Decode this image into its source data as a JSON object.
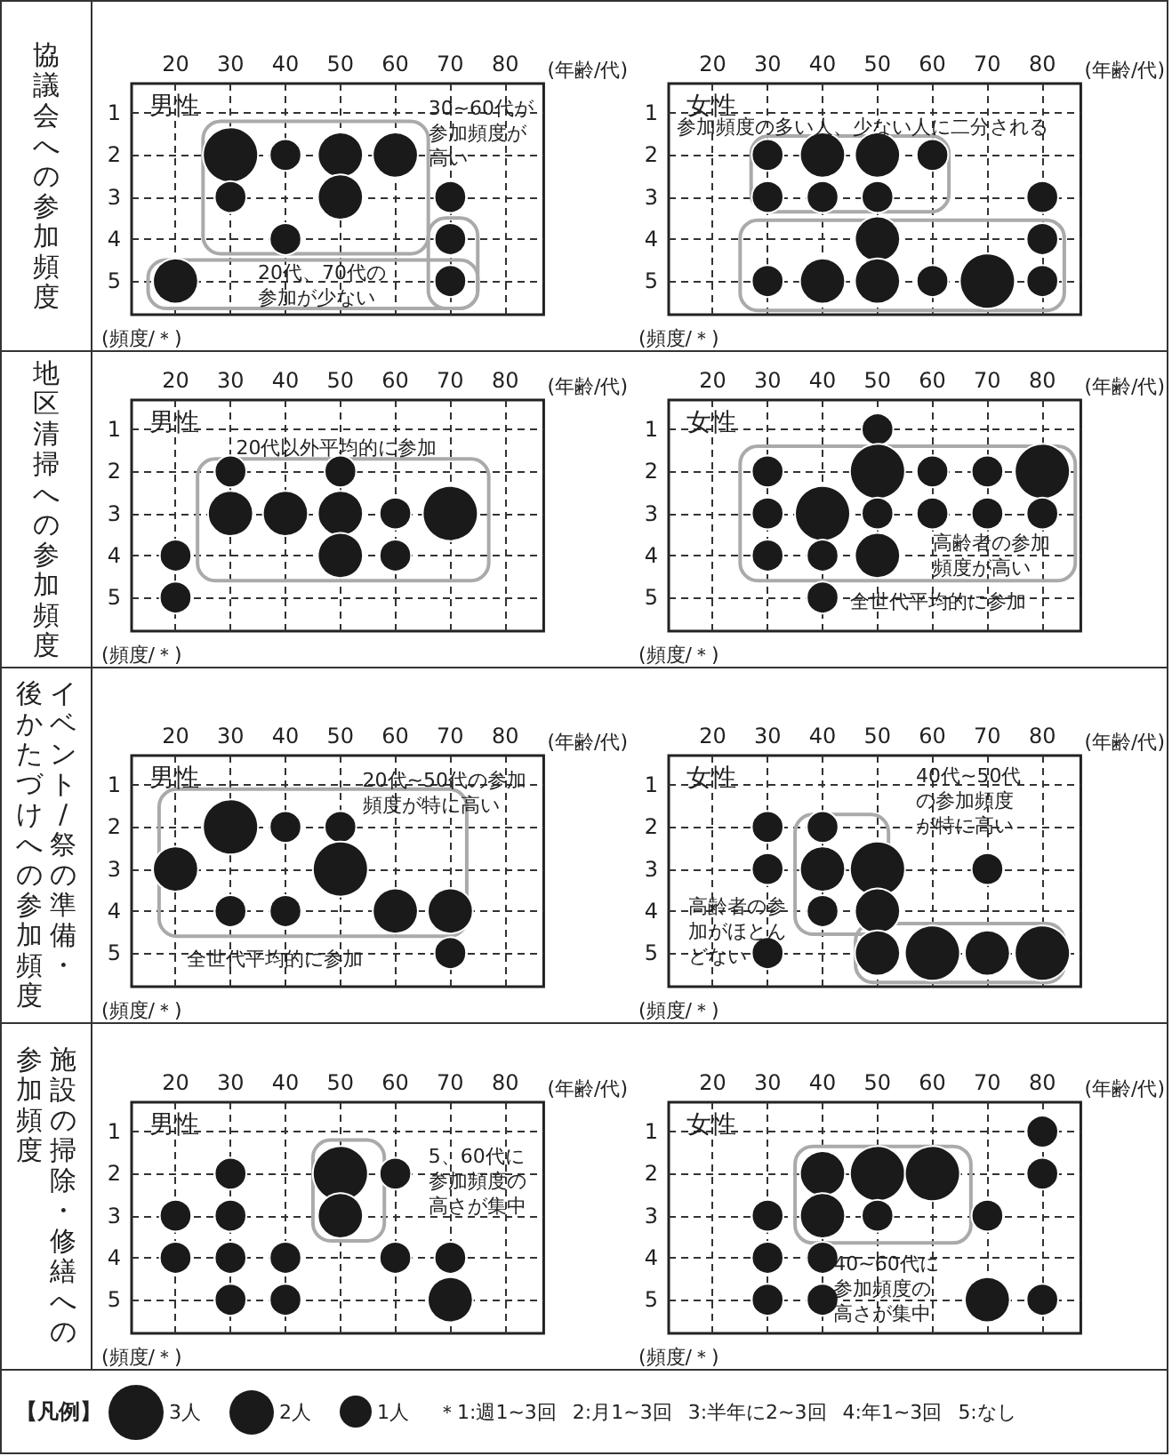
{
  "chart_data": [
    {
      "type": "bubble",
      "title": "男性",
      "xlabel": "(年齢/代)",
      "ylabel": "(頻度/＊)",
      "color": "#1a1a1a",
      "marker": "circle",
      "grid": true,
      "xlim": [
        12,
        87
      ],
      "xticks": [
        20,
        30,
        40,
        50,
        60,
        70,
        80
      ],
      "ylim": [
        5.8,
        0.3
      ],
      "yticks": [
        1,
        2,
        3,
        4,
        5
      ],
      "x": [
        30,
        40,
        50,
        60,
        30,
        50,
        70,
        40,
        70,
        20,
        70
      ],
      "values": [
        2,
        2,
        2,
        2,
        3,
        3,
        3,
        4,
        4,
        5,
        5
      ],
      "sizes": [
        1,
        0.33,
        0.67,
        0.67,
        0.33,
        0.67,
        0.33,
        0.33,
        0.33,
        0.67,
        0.33
      ],
      "annotations": [
        "協議会への参加頻度",
        "30~60代が参加頻度が高い",
        "20代、70代の参加が少ない"
      ]
    },
    {
      "type": "bubble",
      "title": "女性",
      "xlabel": "(年齢/代)",
      "ylabel": "(頻度/＊)",
      "color": "#1a1a1a",
      "marker": "circle",
      "grid": true,
      "xlim": [
        12,
        87
      ],
      "xticks": [
        20,
        30,
        40,
        50,
        60,
        70,
        80
      ],
      "ylim": [
        5.8,
        0.3
      ],
      "yticks": [
        1,
        2,
        3,
        4,
        5
      ],
      "x": [
        30,
        40,
        50,
        60,
        30,
        40,
        50,
        80,
        50,
        80,
        30,
        40,
        50,
        60,
        70,
        80
      ],
      "values": [
        2,
        2,
        2,
        2,
        3,
        3,
        3,
        3,
        4,
        4,
        5,
        5,
        5,
        5,
        5,
        5
      ],
      "sizes": [
        0.33,
        0.67,
        0.67,
        0.33,
        0.33,
        0.33,
        0.33,
        0.33,
        0.67,
        0.33,
        0.33,
        0.67,
        0.67,
        0.33,
        1,
        0.33
      ],
      "annotations": [
        "参加頻度の多い人、少ない人に二分される"
      ]
    },
    {
      "type": "bubble",
      "title": "男性",
      "xlabel": "(年齢/代)",
      "ylabel": "(頻度/＊)",
      "color": "#1a1a1a",
      "marker": "circle",
      "grid": true,
      "xlim": [
        12,
        87
      ],
      "xticks": [
        20,
        30,
        40,
        50,
        60,
        70,
        80
      ],
      "ylim": [
        5.8,
        0.3
      ],
      "yticks": [
        1,
        2,
        3,
        4,
        5
      ],
      "x": [
        30,
        50,
        30,
        40,
        50,
        60,
        70,
        20,
        50,
        60,
        20
      ],
      "values": [
        2,
        2,
        3,
        3,
        3,
        3,
        3,
        4,
        4,
        4,
        5
      ],
      "sizes": [
        0.33,
        0.33,
        0.67,
        0.67,
        0.67,
        0.33,
        1,
        0.33,
        0.67,
        0.33,
        0.33
      ],
      "annotations": [
        "地区清掃への参加頻度",
        "20代以外平均的に参加"
      ]
    },
    {
      "type": "bubble",
      "title": "女性",
      "xlabel": "(年齢/代)",
      "ylabel": "(頻度/＊)",
      "color": "#1a1a1a",
      "marker": "circle",
      "grid": true,
      "xlim": [
        12,
        87
      ],
      "xticks": [
        20,
        30,
        40,
        50,
        60,
        70,
        80
      ],
      "ylim": [
        5.8,
        0.3
      ],
      "yticks": [
        1,
        2,
        3,
        4,
        5
      ],
      "x": [
        50,
        30,
        50,
        60,
        70,
        80,
        30,
        40,
        50,
        60,
        70,
        80,
        30,
        40,
        50,
        40
      ],
      "values": [
        1,
        2,
        2,
        2,
        2,
        2,
        3,
        3,
        3,
        3,
        3,
        3,
        4,
        4,
        4,
        5
      ],
      "sizes": [
        0.33,
        0.33,
        1,
        0.33,
        0.33,
        1,
        0.33,
        1,
        0.33,
        0.33,
        0.33,
        0.33,
        0.33,
        0.33,
        0.67,
        0.33
      ],
      "annotations": [
        "高齢者の参加頻度が高い",
        "全世代平均的に参加"
      ]
    },
    {
      "type": "bubble",
      "title": "男性",
      "xlabel": "(年齢/代)",
      "ylabel": "(頻度/＊)",
      "color": "#1a1a1a",
      "marker": "circle",
      "grid": true,
      "xlim": [
        12,
        87
      ],
      "xticks": [
        20,
        30,
        40,
        50,
        60,
        70,
        80
      ],
      "ylim": [
        5.8,
        0.3
      ],
      "yticks": [
        1,
        2,
        3,
        4,
        5
      ],
      "x": [
        30,
        40,
        50,
        20,
        50,
        30,
        40,
        60,
        70,
        70
      ],
      "values": [
        2,
        2,
        2,
        3,
        3,
        4,
        4,
        4,
        4,
        5
      ],
      "sizes": [
        1,
        0.33,
        0.33,
        0.67,
        1,
        0.33,
        0.33,
        0.67,
        0.67,
        0.33
      ],
      "annotations": [
        "イベント/祭の準備・後かたづけへの参加頻度",
        "20代~50代の参加頻度が特に高い",
        "全世代平均的に参加"
      ]
    },
    {
      "type": "bubble",
      "title": "女性",
      "xlabel": "(年齢/代)",
      "ylabel": "(頻度/＊)",
      "color": "#1a1a1a",
      "marker": "circle",
      "grid": true,
      "xlim": [
        12,
        87
      ],
      "xticks": [
        20,
        30,
        40,
        50,
        60,
        70,
        80
      ],
      "ylim": [
        5.8,
        0.3
      ],
      "yticks": [
        1,
        2,
        3,
        4,
        5
      ],
      "x": [
        30,
        40,
        30,
        40,
        50,
        70,
        40,
        50,
        30,
        50,
        60,
        70,
        80
      ],
      "values": [
        2,
        2,
        3,
        3,
        3,
        3,
        4,
        4,
        5,
        5,
        5,
        5,
        5
      ],
      "sizes": [
        0.33,
        0.33,
        0.33,
        0.67,
        1,
        0.33,
        0.33,
        0.67,
        0.33,
        0.67,
        1,
        0.67,
        1
      ],
      "annotations": [
        "40代~50代の参加頻度が特に高い",
        "高齢者の参加がほとんどない"
      ]
    },
    {
      "type": "bubble",
      "title": "男性",
      "xlabel": "(年齢/代)",
      "ylabel": "(頻度/＊)",
      "color": "#1a1a1a",
      "marker": "circle",
      "grid": true,
      "xlim": [
        12,
        87
      ],
      "xticks": [
        20,
        30,
        40,
        50,
        60,
        70,
        80
      ],
      "ylim": [
        5.8,
        0.3
      ],
      "yticks": [
        1,
        2,
        3,
        4,
        5
      ],
      "x": [
        30,
        50,
        60,
        20,
        30,
        50,
        20,
        30,
        40,
        60,
        70,
        30,
        40,
        70
      ],
      "values": [
        2,
        2,
        2,
        3,
        3,
        3,
        4,
        4,
        4,
        4,
        4,
        5,
        5,
        5
      ],
      "sizes": [
        0.33,
        1,
        0.33,
        0.33,
        0.33,
        0.67,
        0.33,
        0.33,
        0.33,
        0.33,
        0.33,
        0.33,
        0.33,
        0.67
      ],
      "annotations": [
        "施設の掃除・修繕への",
        "参加頻度",
        "5、60代に参加頻度の高さが集中"
      ]
    },
    {
      "type": "bubble",
      "title": "女性",
      "xlabel": "(年齢/代)",
      "ylabel": "(頻度/＊)",
      "color": "#1a1a1a",
      "marker": "circle",
      "grid": true,
      "xlim": [
        12,
        87
      ],
      "xticks": [
        20,
        30,
        40,
        50,
        60,
        70,
        80
      ],
      "ylim": [
        5.8,
        0.3
      ],
      "yticks": [
        1,
        2,
        3,
        4,
        5
      ],
      "x": [
        80,
        40,
        50,
        60,
        80,
        30,
        40,
        50,
        70,
        30,
        40,
        30,
        40,
        70,
        80
      ],
      "values": [
        1,
        2,
        2,
        2,
        2,
        3,
        3,
        3,
        3,
        4,
        4,
        5,
        5,
        5,
        5
      ],
      "sizes": [
        0.33,
        0.67,
        1,
        1,
        0.33,
        0.33,
        0.67,
        0.33,
        0.33,
        0.33,
        0.33,
        0.33,
        0.33,
        0.67,
        0.33
      ],
      "annotations": [
        "40~60代に参加頻度の高さが集中"
      ]
    },
    {
      "type": "other",
      "title": "【凡例】",
      "annotations": [
        "3人",
        "2人",
        "1人",
        "＊1:週1~3回",
        "2:月1~3回",
        "3:半年に2~3回",
        "4:年1~3回",
        "5:なし"
      ]
    }
  ]
}
